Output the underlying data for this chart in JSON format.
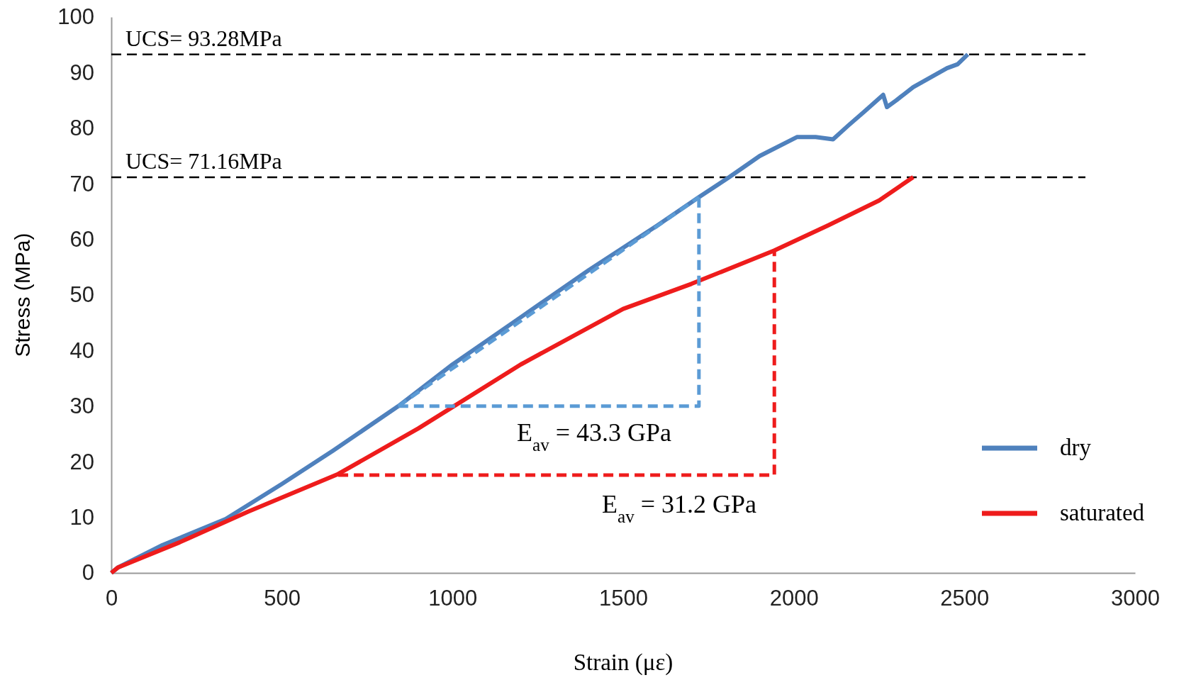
{
  "chart_data": {
    "type": "line",
    "xlabel": "Strain (με)",
    "ylabel": "Stress (MPa)",
    "xlim": [
      0,
      3000
    ],
    "xticks": [
      0,
      500,
      1000,
      1500,
      2000,
      2500,
      3000
    ],
    "ylim": [
      0,
      100
    ],
    "yticks": [
      0,
      10,
      20,
      30,
      40,
      50,
      60,
      70,
      80,
      90,
      100
    ],
    "grid": false,
    "legend": "right",
    "marker": "none",
    "series": [
      {
        "name": "dry",
        "color": "#4f81bd",
        "line_style": "solid",
        "x": [
          0,
          20,
          150,
          335,
          500,
          650,
          841,
          1000,
          1200,
          1400,
          1600,
          1722,
          1811,
          1900,
          2009,
          2064,
          2115,
          2160,
          2207,
          2262,
          2273,
          2300,
          2350,
          2449,
          2480,
          2510
        ],
        "values": [
          0,
          1,
          5,
          9.7,
          16,
          22,
          30,
          37.5,
          46,
          54.5,
          62.5,
          67.6,
          71.2,
          75,
          78.4,
          78.4,
          78,
          80.5,
          83,
          86,
          83.8,
          85,
          87.4,
          90.8,
          91.5,
          93.3
        ]
      },
      {
        "name": "saturated",
        "color": "#ee1c1c",
        "line_style": "solid",
        "x": [
          0,
          20,
          200,
          400,
          665,
          900,
          1200,
          1500,
          1700,
          1943,
          2100,
          2250,
          2350
        ],
        "values": [
          0,
          1,
          5.5,
          11,
          17.8,
          26,
          37.5,
          47.5,
          52,
          58,
          62.5,
          67,
          71.2
        ]
      },
      {
        "color": "#5b9bd5",
        "line_style": "dashed",
        "x": [
          841,
          1722,
          1722
        ],
        "values": [
          30,
          30,
          67.6
        ]
      },
      {
        "color": "#ee1c1c",
        "line_style": "dashed",
        "x": [
          665,
          1943,
          1943
        ],
        "values": [
          17.6,
          17.6,
          58
        ]
      },
      {
        "color": "#5b9bd5",
        "line_style": "dashed",
        "x": [
          841,
          1722
        ],
        "values": [
          30,
          67.6
        ]
      }
    ],
    "ref_lines": [
      {
        "axis": "y",
        "value": 93.28,
        "label": "UCS= 93.28MPa",
        "color": "#000000",
        "line_style": "dashed"
      },
      {
        "axis": "y",
        "value": 71.16,
        "label": "UCS= 71.16MPa",
        "color": "#000000",
        "line_style": "dashed"
      }
    ],
    "annotations": [
      "E$_{av}$ = 43.3 GPa",
      "E$_{av}$ = 31.2 GPa"
    ]
  }
}
